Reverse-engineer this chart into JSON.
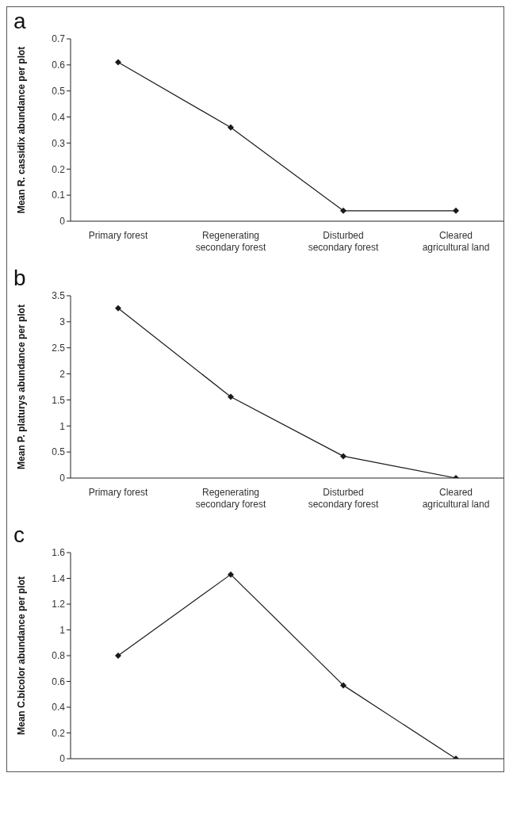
{
  "chart_data": [
    {
      "type": "line",
      "title": "a",
      "ylabel": "Mean R. cassidix abundance per plot",
      "categories": [
        "Primary forest",
        "Regenerating secondary forest",
        "Disturbed secondary forest",
        "Cleared agricultural land"
      ],
      "series": [
        {
          "color": "#1a1a1a",
          "values": [
            0.61,
            0.36,
            0.04,
            0.04
          ]
        }
      ],
      "ylim": [
        0,
        0.7
      ],
      "yticks": [
        0,
        0.1,
        0.2,
        0.3,
        0.4,
        0.5,
        0.6,
        0.7
      ],
      "grid": false,
      "legend": false,
      "marker": "diamond",
      "line_style": "solid"
    },
    {
      "type": "line",
      "title": "b",
      "ylabel": "Mean P. platurys abundance per plot",
      "categories": [
        "Primary forest",
        "Regenerating secondary forest",
        "Disturbed secondary forest",
        "Cleared agricultural land"
      ],
      "series": [
        {
          "color": "#1a1a1a",
          "values": [
            3.26,
            1.56,
            0.42,
            0
          ]
        }
      ],
      "ylim": [
        0,
        3.5
      ],
      "yticks": [
        0,
        0.5,
        1,
        1.5,
        2,
        2.5,
        3,
        3.5
      ],
      "grid": false,
      "legend": false,
      "marker": "diamond",
      "line_style": "solid"
    },
    {
      "type": "line",
      "title": "c",
      "ylabel": "Mean C.bicolor abundance per plot",
      "categories": [
        null,
        null,
        null,
        null
      ],
      "series": [
        {
          "color": "#1a1a1a",
          "values": [
            0.8,
            1.43,
            0.57,
            0
          ]
        }
      ],
      "ylim": [
        0,
        1.6
      ],
      "yticks": [
        0,
        0.2,
        0.4,
        0.6,
        0.8,
        1,
        1.2,
        1.4,
        1.6
      ],
      "grid": false,
      "legend": false,
      "marker": "diamond",
      "line_style": "solid"
    }
  ]
}
